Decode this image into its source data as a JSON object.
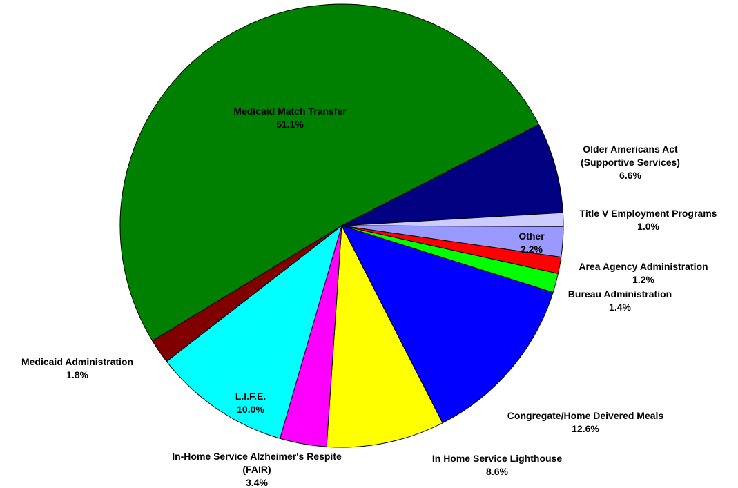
{
  "chart_data": {
    "type": "pie",
    "categories": [
      "Medicaid Match Transfer",
      "Older Americans Act (Supportive Services)",
      "Title V Employment Programs",
      "Other",
      "Area Agency Administration",
      "Bureau Administration",
      "Congregate/Home Deivered Meals",
      "In Home Service Lighthouse",
      "In-Home Service Alzheimer's Respite (FAIR)",
      "L.I.F.E.",
      "Medicaid Administration"
    ],
    "values": [
      51.1,
      6.6,
      1.0,
      2.2,
      1.2,
      1.4,
      12.6,
      8.6,
      3.4,
      10.0,
      1.8
    ],
    "value_labels": [
      "51.1%",
      "6.6%",
      "1.0%",
      "2.2%",
      "1.2%",
      "1.4%",
      "12.6%",
      "8.6%",
      "3.4%",
      "10.0%",
      "1.8%"
    ],
    "colors": [
      "#008000",
      "#000080",
      "#ccccff",
      "#9999ff",
      "#ff0000",
      "#00ff00",
      "#0000ff",
      "#ffff00",
      "#ff00ff",
      "#00ffff",
      "#800000"
    ]
  }
}
